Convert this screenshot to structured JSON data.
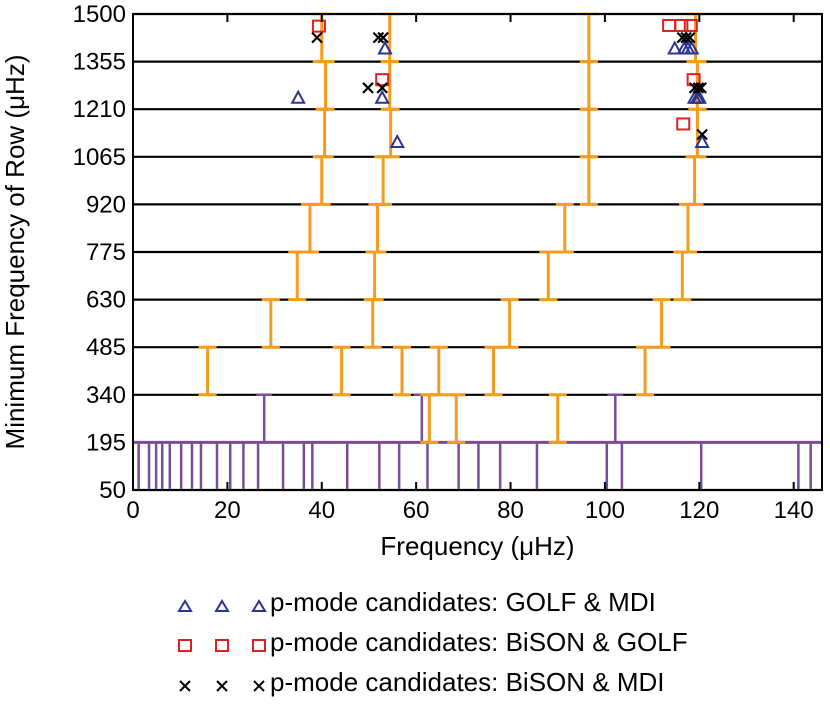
{
  "chart_data": {
    "type": "scatter",
    "title": "",
    "xlabel": "Frequency (μHz)",
    "ylabel": "Minimum Frequency of Row (μHz)",
    "xlim": [
      0,
      146
    ],
    "ylim": [
      50,
      1500
    ],
    "xticks": [
      "0",
      "20",
      "40",
      "60",
      "80",
      "100",
      "120",
      "140"
    ],
    "xtick_values": [
      0,
      20,
      40,
      60,
      80,
      100,
      120,
      140
    ],
    "yticks": [
      "50",
      "195",
      "340",
      "485",
      "630",
      "775",
      "920",
      "1065",
      "1210",
      "1355",
      "1500"
    ],
    "ytick_values": [
      50,
      195,
      340,
      485,
      630,
      775,
      920,
      1065,
      1210,
      1355,
      1500
    ],
    "grid": "horizontal",
    "colors": {
      "orange": "#f39c1e",
      "purple": "#7a4c96",
      "blue": "#2b3591",
      "red": "#e02020",
      "black": "#000000"
    },
    "orange_ridges": [
      {
        "name": "ridge-1",
        "segments": [
          [
            15.8,
            340,
            485
          ],
          [
            29.2,
            485,
            630
          ],
          [
            34.8,
            630,
            775
          ],
          [
            37.5,
            775,
            920
          ],
          [
            40.0,
            920,
            1065
          ],
          [
            40.6,
            1065,
            1210
          ],
          [
            40.8,
            1210,
            1355
          ],
          [
            40.0,
            1355,
            1500
          ]
        ]
      },
      {
        "name": "ridge-2",
        "segments": [
          [
            44.2,
            340,
            485
          ],
          [
            50.8,
            485,
            630
          ],
          [
            51.2,
            630,
            775
          ],
          [
            51.8,
            775,
            920
          ],
          [
            53.0,
            920,
            1065
          ],
          [
            54.6,
            1065,
            1210
          ],
          [
            54.4,
            1210,
            1355
          ],
          [
            54.4,
            1355,
            1500
          ]
        ]
      },
      {
        "name": "ridge-3",
        "segments": [
          [
            57.0,
            340,
            485
          ],
          [
            62.8,
            195,
            340
          ],
          [
            64.8,
            340,
            485
          ],
          [
            68.5,
            195,
            340
          ],
          [
            76.4,
            340,
            485
          ],
          [
            79.8,
            485,
            630
          ],
          [
            88.0,
            630,
            775
          ],
          [
            91.5,
            775,
            920
          ],
          [
            96.6,
            920,
            1065
          ],
          [
            96.6,
            1065,
            1210
          ],
          [
            96.6,
            1210,
            1355
          ],
          [
            96.6,
            1355,
            1500
          ]
        ]
      },
      {
        "name": "ridge-4",
        "segments": [
          [
            90.0,
            195,
            340
          ],
          [
            108.5,
            340,
            485
          ],
          [
            112.0,
            485,
            630
          ],
          [
            116.4,
            630,
            775
          ],
          [
            117.6,
            775,
            920
          ],
          [
            119.0,
            920,
            1065
          ],
          [
            119.6,
            1065,
            1210
          ],
          [
            119.6,
            1210,
            1355
          ],
          [
            119.2,
            1355,
            1500
          ]
        ]
      }
    ],
    "purple_bars": [
      {
        "x": 27.8,
        "y0": 195,
        "y1": 340
      },
      {
        "x": 61.2,
        "y0": 195,
        "y1": 340
      },
      {
        "x": 102.2,
        "y0": 195,
        "y1": 340
      }
    ],
    "purple_bottom_x": [
      1.2,
      3.4,
      4.9,
      6.2,
      7.8,
      10.2,
      12.5,
      14.4,
      17.8,
      20.6,
      23.4,
      26.5,
      31.8,
      36.2,
      38.0,
      45.4,
      52.2,
      56.4,
      62.4,
      69.0,
      73.2,
      77.8,
      85.6,
      100.4,
      103.6,
      120.4,
      141.0,
      143.6
    ],
    "series": [
      {
        "name": "p-mode candidates: GOLF & MDI",
        "marker": "triangle",
        "color": "#2b3591",
        "points": [
          [
            35.0,
            1245
          ],
          [
            52.8,
            1245
          ],
          [
            53.4,
            1395
          ],
          [
            56.0,
            1110
          ],
          [
            114.8,
            1395
          ],
          [
            116.8,
            1395
          ],
          [
            117.6,
            1395
          ],
          [
            118.4,
            1395
          ],
          [
            119.0,
            1245
          ],
          [
            119.6,
            1245
          ],
          [
            120.0,
            1245
          ],
          [
            120.6,
            1110
          ]
        ]
      },
      {
        "name": "p-mode candidates: BiSON & GOLF",
        "marker": "square",
        "color": "#e02020",
        "points": [
          [
            39.4,
            1463
          ],
          [
            52.8,
            1300
          ],
          [
            113.6,
            1465
          ],
          [
            116.2,
            1465
          ],
          [
            118.2,
            1465
          ],
          [
            118.8,
            1300
          ],
          [
            116.6,
            1165
          ]
        ]
      },
      {
        "name": "p-mode candidates: BiSON & MDI",
        "marker": "cross",
        "color": "#000000",
        "points": [
          [
            39.0,
            1428
          ],
          [
            52.0,
            1428
          ],
          [
            53.0,
            1428
          ],
          [
            49.8,
            1275
          ],
          [
            52.8,
            1275
          ],
          [
            116.4,
            1428
          ],
          [
            117.2,
            1428
          ],
          [
            118.0,
            1428
          ],
          [
            119.0,
            1275
          ],
          [
            119.8,
            1275
          ],
          [
            120.4,
            1275
          ],
          [
            120.6,
            1133
          ]
        ]
      }
    ]
  },
  "legend": [
    {
      "label": "p-mode candidates: GOLF & MDI",
      "marker": "triangle",
      "color": "#2b3591"
    },
    {
      "label": "p-mode candidates: BiSON & GOLF",
      "marker": "square",
      "color": "#e02020"
    },
    {
      "label": "p-mode candidates: BiSON & MDI",
      "marker": "cross",
      "color": "#000000"
    }
  ]
}
